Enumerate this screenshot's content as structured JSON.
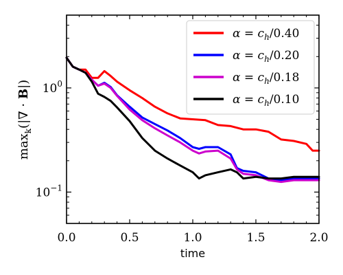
{
  "chart_data": {
    "type": "line",
    "xlabel": "time",
    "ylabel": "max_k(|∇ · B|)",
    "xlim": [
      0.0,
      2.0
    ],
    "ylim": [
      0.05,
      5.0
    ],
    "yscale": "log",
    "x_ticks": [
      "0.0",
      "0.5",
      "1.0",
      "1.5",
      "2.0"
    ],
    "x_tick_values": [
      0.0,
      0.5,
      1.0,
      1.5,
      2.0
    ],
    "y_ticks": [
      "10",
      "10"
    ],
    "y_tick_exps": [
      "0",
      "−1"
    ],
    "y_tick_values": [
      1.0,
      0.1
    ],
    "legend_position": "top-right",
    "grid": false,
    "series": [
      {
        "name": "α = c_h/0.40",
        "color": "#ff0000",
        "x": [
          0.0,
          0.05,
          0.1,
          0.15,
          0.2,
          0.25,
          0.3,
          0.35,
          0.4,
          0.5,
          0.6,
          0.7,
          0.8,
          0.9,
          1.0,
          1.1,
          1.2,
          1.3,
          1.4,
          1.5,
          1.6,
          1.7,
          1.8,
          1.9,
          1.95,
          2.0
        ],
        "y": [
          1.95,
          1.6,
          1.5,
          1.5,
          1.25,
          1.25,
          1.45,
          1.3,
          1.15,
          0.95,
          0.8,
          0.66,
          0.57,
          0.51,
          0.5,
          0.49,
          0.44,
          0.43,
          0.4,
          0.4,
          0.38,
          0.32,
          0.31,
          0.29,
          0.25,
          0.25
        ]
      },
      {
        "name": "α = c_h/0.20",
        "color": "#0000ff",
        "x": [
          0.0,
          0.05,
          0.1,
          0.15,
          0.2,
          0.25,
          0.3,
          0.35,
          0.4,
          0.5,
          0.6,
          0.7,
          0.8,
          0.9,
          1.0,
          1.05,
          1.1,
          1.2,
          1.3,
          1.35,
          1.4,
          1.5,
          1.6,
          1.7,
          1.8,
          1.9,
          2.0
        ],
        "y": [
          1.95,
          1.6,
          1.5,
          1.4,
          1.2,
          1.05,
          1.12,
          1.02,
          0.85,
          0.66,
          0.52,
          0.45,
          0.39,
          0.33,
          0.27,
          0.26,
          0.27,
          0.27,
          0.23,
          0.17,
          0.16,
          0.155,
          0.135,
          0.13,
          0.135,
          0.135,
          0.135
        ]
      },
      {
        "name": "α = c_h/0.18",
        "color": "#cc00cc",
        "x": [
          0.0,
          0.05,
          0.1,
          0.15,
          0.2,
          0.25,
          0.3,
          0.35,
          0.4,
          0.5,
          0.6,
          0.7,
          0.8,
          0.9,
          1.0,
          1.05,
          1.1,
          1.2,
          1.3,
          1.35,
          1.4,
          1.5,
          1.6,
          1.7,
          1.8,
          1.9,
          2.0
        ],
        "y": [
          1.95,
          1.6,
          1.5,
          1.4,
          1.2,
          1.05,
          1.1,
          1.0,
          0.84,
          0.62,
          0.49,
          0.41,
          0.35,
          0.3,
          0.25,
          0.235,
          0.245,
          0.25,
          0.21,
          0.165,
          0.15,
          0.145,
          0.13,
          0.125,
          0.13,
          0.13,
          0.13
        ]
      },
      {
        "name": "α = c_h/0.10",
        "color": "#000000",
        "x": [
          0.0,
          0.05,
          0.1,
          0.15,
          0.2,
          0.25,
          0.3,
          0.35,
          0.4,
          0.5,
          0.6,
          0.7,
          0.8,
          0.9,
          1.0,
          1.05,
          1.1,
          1.2,
          1.3,
          1.35,
          1.4,
          1.5,
          1.6,
          1.7,
          1.8,
          1.9,
          2.0
        ],
        "y": [
          1.95,
          1.6,
          1.5,
          1.4,
          1.15,
          0.88,
          0.82,
          0.75,
          0.65,
          0.48,
          0.33,
          0.25,
          0.21,
          0.18,
          0.155,
          0.135,
          0.145,
          0.155,
          0.165,
          0.155,
          0.135,
          0.14,
          0.135,
          0.135,
          0.14,
          0.14,
          0.14
        ]
      }
    ]
  },
  "legend": {
    "items": [
      {
        "prefix": "α = ",
        "base": "c",
        "sub": "h",
        "suffix": "/0.40",
        "color": "#ff0000"
      },
      {
        "prefix": "α = ",
        "base": "c",
        "sub": "h",
        "suffix": "/0.20",
        "color": "#0000ff"
      },
      {
        "prefix": "α = ",
        "base": "c",
        "sub": "h",
        "suffix": "/0.18",
        "color": "#cc00cc"
      },
      {
        "prefix": "α = ",
        "base": "c",
        "sub": "h",
        "suffix": "/0.10",
        "color": "#000000"
      }
    ]
  },
  "ylabel_parts": {
    "func": "max",
    "sub": "k",
    "body": "(|∇ · ",
    "bold": "B",
    "close": "|)"
  }
}
